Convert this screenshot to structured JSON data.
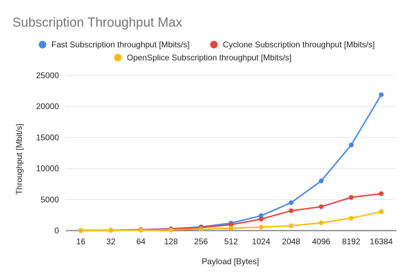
{
  "chart_data": {
    "type": "line",
    "title": "Subscription Throughput Max",
    "xlabel": "Payload [Bytes]",
    "ylabel": "Throughput [Mbit/s]",
    "categories": [
      "16",
      "32",
      "64",
      "128",
      "256",
      "512",
      "1024",
      "2048",
      "4096",
      "8192",
      "16384"
    ],
    "ylim": [
      0,
      25000
    ],
    "yticks": [
      0,
      5000,
      10000,
      15000,
      20000,
      25000
    ],
    "grid": true,
    "legend_position": "top",
    "series": [
      {
        "name": "Fast Subscription throughput [Mbits/s]",
        "color": "#4285f4",
        "values": [
          20,
          50,
          150,
          300,
          600,
          1200,
          2400,
          4500,
          8000,
          13800,
          21900
        ]
      },
      {
        "name": "Cyclone Subscription throughput [Mbits/s]",
        "color": "#ea4335",
        "values": [
          15,
          40,
          120,
          250,
          500,
          950,
          1850,
          3200,
          3850,
          5350,
          5950
        ]
      },
      {
        "name": "OpenSplice Subscription throughput [Mbits/s]",
        "color": "#fbbc04",
        "values": [
          10,
          25,
          60,
          110,
          220,
          380,
          550,
          780,
          1250,
          2000,
          3050
        ]
      }
    ]
  }
}
